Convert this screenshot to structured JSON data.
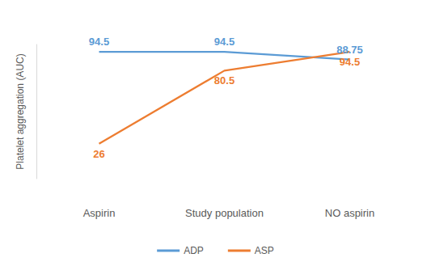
{
  "chart_data": {
    "type": "line",
    "ylabel": "Platelet aggregation (AUC)",
    "categories": [
      "Aspirin",
      "Study population",
      "NO aspirin"
    ],
    "series": [
      {
        "name": "ADP",
        "color": "#5B9BD5",
        "values": [
          94.5,
          94.5,
          88.75
        ]
      },
      {
        "name": "ASP",
        "color": "#ED7D31",
        "values": [
          26,
          80.5,
          94.5
        ]
      }
    ],
    "ylim": [
      0,
      100
    ],
    "yticks": [],
    "grid": false,
    "legend": "bottom",
    "data_labels": true,
    "tick_labels": "x"
  }
}
